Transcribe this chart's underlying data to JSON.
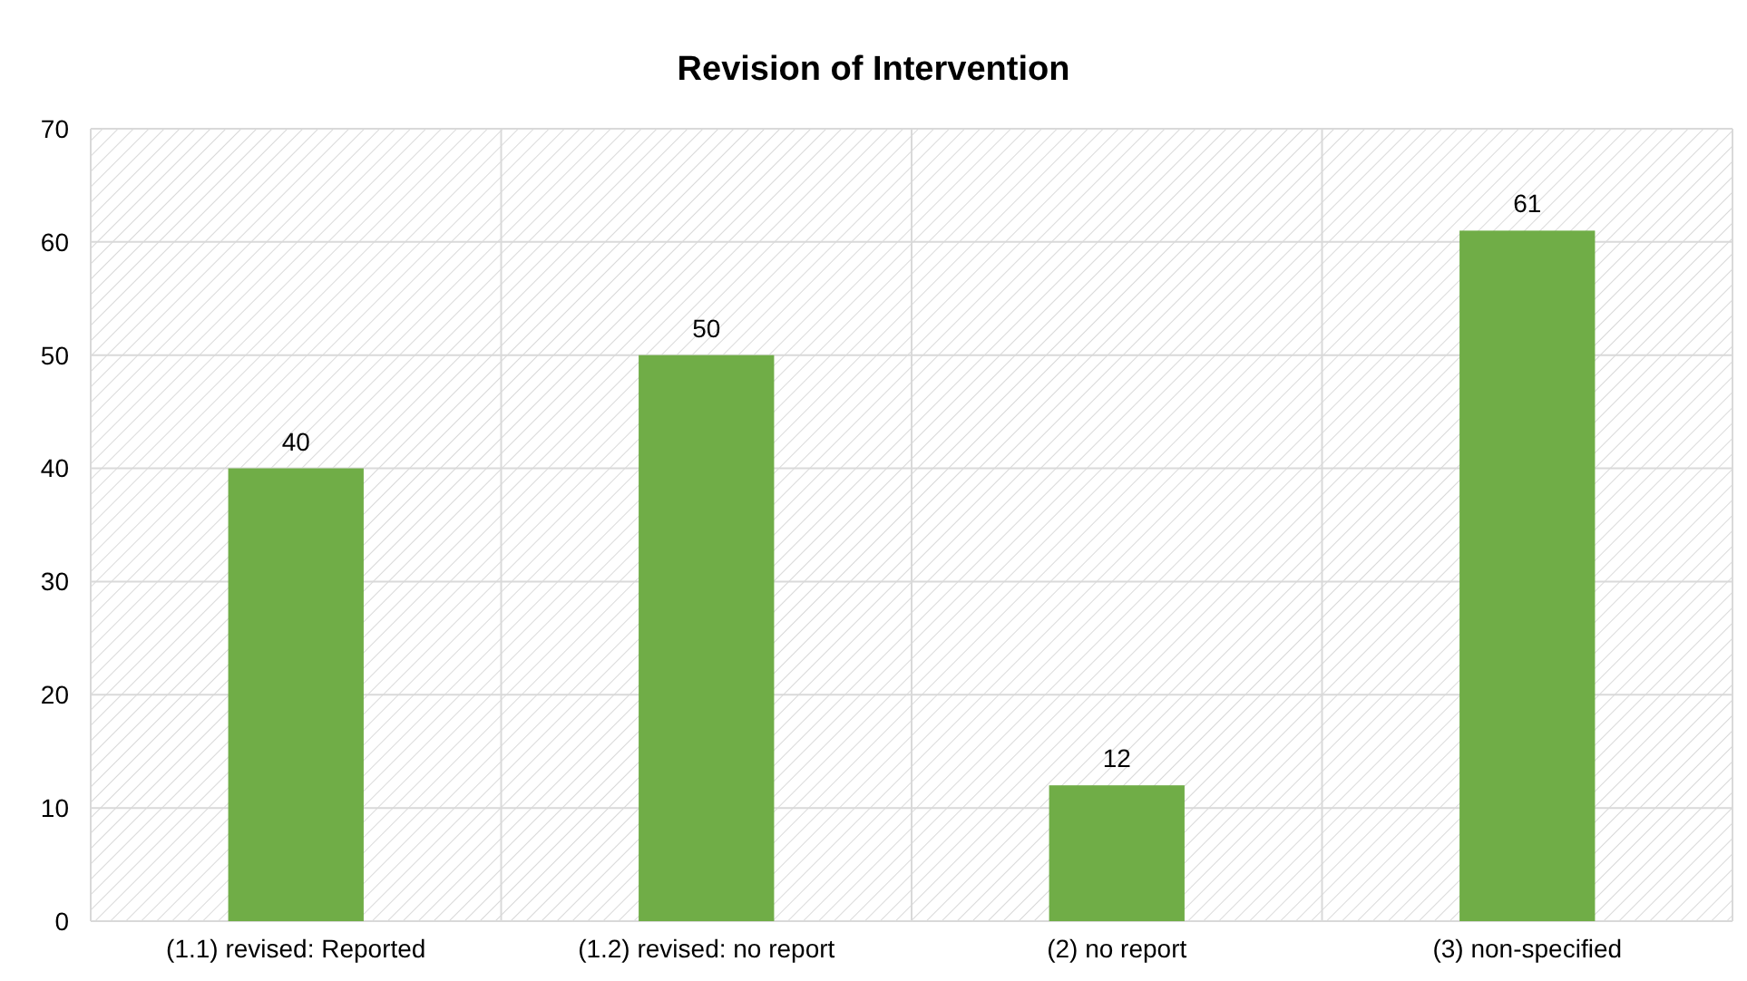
{
  "chart_data": {
    "type": "bar",
    "title": "Revision of Intervention",
    "categories": [
      "(1.1) revised: Reported",
      "(1.2) revised: no report",
      "(2) no report",
      "(3) non-specified"
    ],
    "values": [
      40,
      50,
      12,
      61
    ],
    "color": "#70ad47",
    "ylim": [
      0,
      70
    ],
    "yticks": [
      0,
      10,
      20,
      30,
      40,
      50,
      60,
      70
    ],
    "grid": true,
    "data_labels": true
  }
}
